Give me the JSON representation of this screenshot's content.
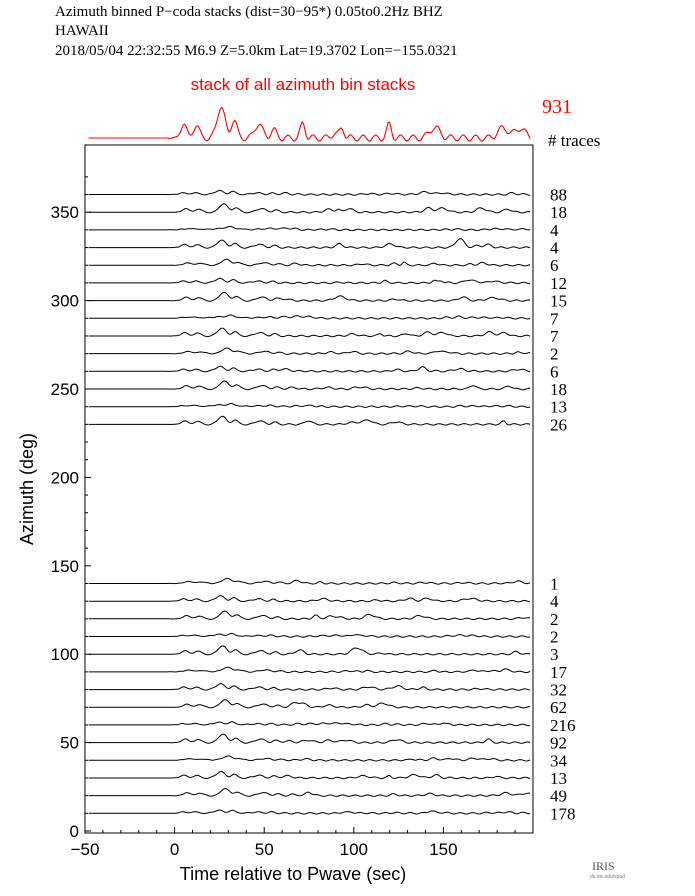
{
  "header": {
    "line1": "Azimuth binned P−coda stacks (dist=30−95*)  0.05to0.2Hz  BHZ",
    "line2": "HAWAII",
    "line3": "2018/05/04  22:32:55  M6.9  Z=5.0km Lat=19.3702 Lon=−155.0321"
  },
  "logo": {
    "text": "IRIS",
    "subtext": "ds.iris.edu/spud"
  },
  "chart_data": {
    "type": "line",
    "title": "Azimuth binned P−coda stacks (dist=30−95*)  0.05to0.2Hz  BHZ",
    "xlabel": "Time relative to Pwave (sec)",
    "ylabel": "Azimuth (deg)",
    "xlim": [
      -50,
      200
    ],
    "ylim": [
      0,
      380
    ],
    "xticks": [
      -50,
      0,
      50,
      100,
      150
    ],
    "yticks": [
      0,
      50,
      100,
      150,
      200,
      250,
      300,
      350
    ],
    "grid": false,
    "stack_label": "stack of all azimuth bin stacks",
    "stack_color": "#ff0000",
    "total_traces": "931",
    "count_header": "# traces",
    "bins": [
      {
        "azimuth": 360,
        "traces": "88"
      },
      {
        "azimuth": 350,
        "traces": "18"
      },
      {
        "azimuth": 340,
        "traces": "4"
      },
      {
        "azimuth": 330,
        "traces": "4"
      },
      {
        "azimuth": 320,
        "traces": "6"
      },
      {
        "azimuth": 310,
        "traces": "12"
      },
      {
        "azimuth": 300,
        "traces": "15"
      },
      {
        "azimuth": 290,
        "traces": "7"
      },
      {
        "azimuth": 280,
        "traces": "7"
      },
      {
        "azimuth": 270,
        "traces": "2"
      },
      {
        "azimuth": 260,
        "traces": "6"
      },
      {
        "azimuth": 250,
        "traces": "18"
      },
      {
        "azimuth": 240,
        "traces": "13"
      },
      {
        "azimuth": 230,
        "traces": "26"
      },
      {
        "azimuth": 140,
        "traces": "1"
      },
      {
        "azimuth": 130,
        "traces": "4"
      },
      {
        "azimuth": 120,
        "traces": "2"
      },
      {
        "azimuth": 110,
        "traces": "2"
      },
      {
        "azimuth": 100,
        "traces": "3"
      },
      {
        "azimuth": 90,
        "traces": "17"
      },
      {
        "azimuth": 80,
        "traces": "32"
      },
      {
        "azimuth": 70,
        "traces": "62"
      },
      {
        "azimuth": 60,
        "traces": "216"
      },
      {
        "azimuth": 50,
        "traces": "92"
      },
      {
        "azimuth": 40,
        "traces": "34"
      },
      {
        "azimuth": 30,
        "traces": "13"
      },
      {
        "azimuth": 20,
        "traces": "49"
      },
      {
        "azimuth": 10,
        "traces": "178"
      }
    ]
  }
}
